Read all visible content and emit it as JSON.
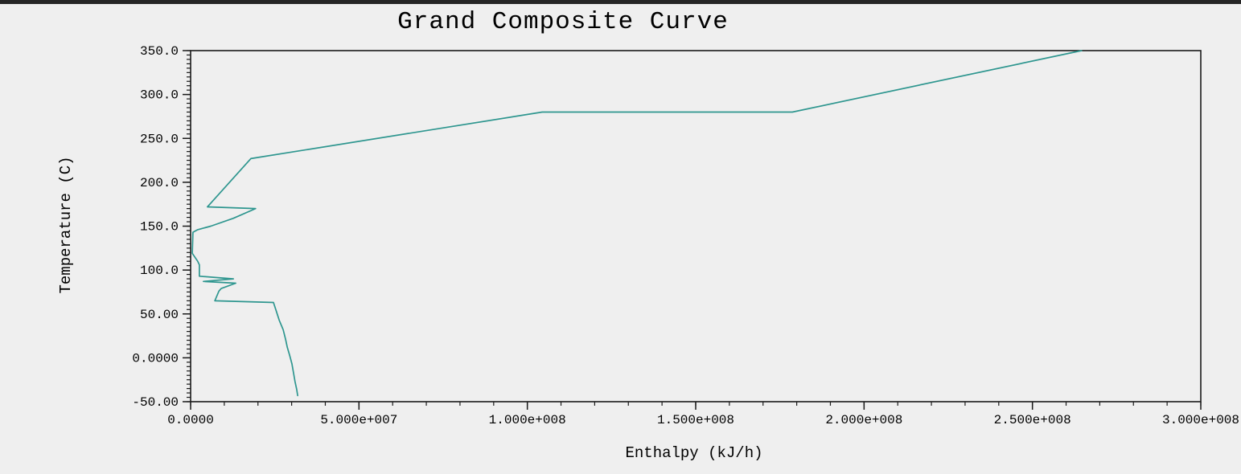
{
  "window": {
    "background_color": "#efefef",
    "top_border_color": "#262626"
  },
  "chart_data": {
    "type": "line",
    "title": "Grand Composite Curve",
    "xlabel": "Enthalpy (kJ/h)",
    "ylabel": "Temperature (C)",
    "xlim": [
      0,
      300000000
    ],
    "ylim": [
      -50,
      350
    ],
    "x_ticks": [
      0,
      50000000,
      100000000,
      150000000,
      200000000,
      250000000,
      300000000
    ],
    "x_tick_labels": [
      "0.0000",
      "5.000e+007",
      "1.000e+008",
      "1.500e+008",
      "2.000e+008",
      "2.500e+008",
      "3.000e+008"
    ],
    "y_ticks": [
      350,
      300,
      250,
      200,
      150,
      100,
      50,
      0,
      -50
    ],
    "y_tick_labels": [
      "350.0",
      "300.0",
      "250.0",
      "200.0",
      "150.0",
      "100.0",
      "50.00",
      "0.0000",
      "-50.00"
    ],
    "x_minor_step": 10000000,
    "y_minor_step": 5,
    "grid": false,
    "legend": "none",
    "line_color": "#2e968f",
    "frame_color": "#1a1a1a",
    "series": [
      {
        "name": "Grand Composite Curve",
        "points": [
          [
            264600000,
            350
          ],
          [
            178700000,
            280
          ],
          [
            104400000,
            280
          ],
          [
            17900000,
            227
          ],
          [
            5000000,
            172
          ],
          [
            19300000,
            170
          ],
          [
            12700000,
            159
          ],
          [
            6000000,
            150
          ],
          [
            2100000,
            146
          ],
          [
            700000,
            143
          ],
          [
            500000,
            119
          ],
          [
            2100000,
            110
          ],
          [
            2600000,
            106
          ],
          [
            2600000,
            93
          ],
          [
            12700000,
            90
          ],
          [
            3800000,
            87
          ],
          [
            13400000,
            85
          ],
          [
            9100000,
            79
          ],
          [
            8400000,
            76
          ],
          [
            7200000,
            65
          ],
          [
            24600000,
            63
          ],
          [
            25300000,
            55
          ],
          [
            26300000,
            43
          ],
          [
            27500000,
            32
          ],
          [
            28200000,
            21
          ],
          [
            28700000,
            12
          ],
          [
            29400000,
            3
          ],
          [
            30100000,
            -7
          ],
          [
            30600000,
            -18
          ],
          [
            31000000,
            -27
          ],
          [
            31500000,
            -36
          ],
          [
            31800000,
            -43
          ]
        ]
      }
    ]
  }
}
